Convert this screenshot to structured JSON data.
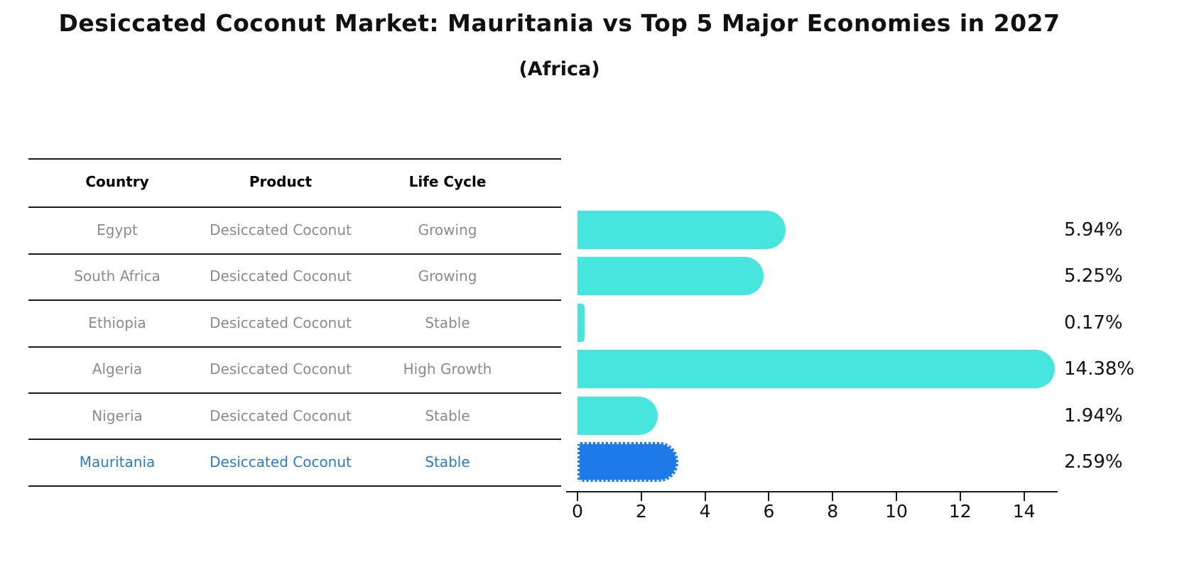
{
  "header": {
    "title": "Desiccated Coconut Market: Mauritania vs Top 5 Major Economies in 2027",
    "subtitle": "(Africa)"
  },
  "table": {
    "headers": [
      "Country",
      "Product",
      "Life Cycle"
    ],
    "rows": [
      {
        "country": "Egypt",
        "product": "Desiccated Coconut",
        "life_cycle": "Growing",
        "highlight": false
      },
      {
        "country": "South Africa",
        "product": "Desiccated Coconut",
        "life_cycle": "Growing",
        "highlight": false
      },
      {
        "country": "Ethiopia",
        "product": "Desiccated Coconut",
        "life_cycle": "Stable",
        "highlight": false
      },
      {
        "country": "Algeria",
        "product": "Desiccated Coconut",
        "life_cycle": "High Growth",
        "highlight": false
      },
      {
        "country": "Nigeria",
        "product": "Desiccated Coconut",
        "life_cycle": "Stable",
        "highlight": false
      },
      {
        "country": "Mauritania",
        "product": "Desiccated Coconut",
        "life_cycle": "Stable",
        "highlight": true
      }
    ]
  },
  "chart_data": {
    "type": "bar",
    "orientation": "horizontal",
    "title": "Desiccated Coconut Market: Mauritania vs Top 5 Major Economies in 2027",
    "subtitle": "(Africa)",
    "categories": [
      "Egypt",
      "South Africa",
      "Ethiopia",
      "Algeria",
      "Nigeria",
      "Mauritania"
    ],
    "values": [
      5.94,
      5.25,
      0.17,
      14.38,
      1.94,
      2.59
    ],
    "value_labels": [
      "5.94%",
      "5.25%",
      "0.17%",
      "14.38%",
      "1.94%",
      "2.59%"
    ],
    "highlight_index": 5,
    "xlabel": "",
    "ylabel": "",
    "xlim": [
      0,
      15.1
    ],
    "xticks": [
      0,
      2,
      4,
      6,
      8,
      10,
      12,
      14
    ],
    "grid": false,
    "legend": false
  },
  "colors": {
    "bar": "#46e6df",
    "highlight_bar": "#1e7ae8",
    "highlight_bar_edge": "#d9f0fb",
    "highlight_text": "#2b7bcb",
    "table_text": "#8b8b8b",
    "header_text": "#000000",
    "line": "#1a1a1a"
  }
}
